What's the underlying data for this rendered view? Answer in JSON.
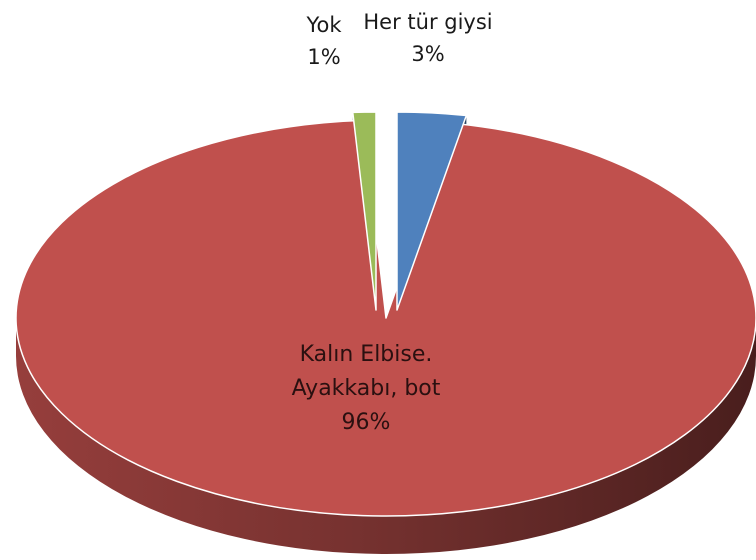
{
  "chart_data": {
    "type": "pie",
    "style": "3d-exploded",
    "slices": [
      {
        "name": "Her tür giysi",
        "value": 3,
        "label": "3%",
        "color": "#4f81bd"
      },
      {
        "name": "Kalın Elbise. Ayakkabı, bot",
        "line1": "Kalın Elbise.",
        "line2": "Ayakkabı, bot",
        "value": 96,
        "label": "96%",
        "color": "#c0504d"
      },
      {
        "name": "Yok",
        "value": 1,
        "label": "1%",
        "color": "#9bbb59"
      }
    ],
    "title": "",
    "legend": "none"
  }
}
